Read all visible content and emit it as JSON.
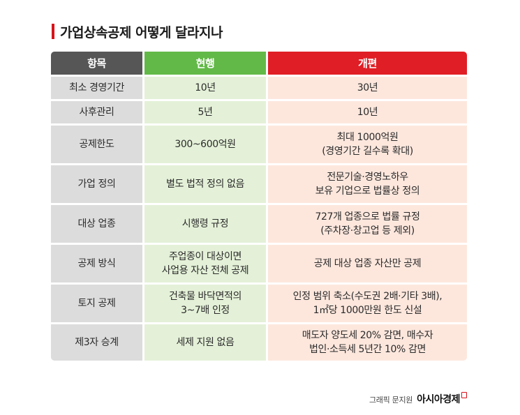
{
  "title": "가업상속공제 어떻게 달라지나",
  "colors": {
    "accent": "#d7121a",
    "header_item": "#565656",
    "header_current": "#62b947",
    "header_reform": "#e01e25",
    "col_item_bg": "#dcdcdc",
    "col_current_bg": "#e4f1d8",
    "col_reform_bg": "#fde7dd"
  },
  "table": {
    "headers": [
      "항목",
      "현행",
      "개편"
    ],
    "rows": [
      {
        "item": [
          "최소 경영기간"
        ],
        "current": [
          "10년"
        ],
        "reform": [
          "30년"
        ]
      },
      {
        "item": [
          "사후관리"
        ],
        "current": [
          "5년"
        ],
        "reform": [
          "10년"
        ]
      },
      {
        "item": [
          "공제한도"
        ],
        "current": [
          "300~600억원"
        ],
        "reform": [
          "최대 1000억원",
          "(경영기간 길수록 확대)"
        ]
      },
      {
        "item": [
          "가업 정의"
        ],
        "current": [
          "별도 법적 정의 없음"
        ],
        "reform": [
          "전문기술·경영노하우",
          "보유 기업으로 법률상 정의"
        ]
      },
      {
        "item": [
          "대상 업종"
        ],
        "current": [
          "시행령 규정"
        ],
        "reform": [
          "727개 업종으로 법률 규정",
          "(주차장·창고업 등 제외)"
        ]
      },
      {
        "item": [
          "공제 방식"
        ],
        "current": [
          "주업종이 대상이면",
          "사업용 자산 전체 공제"
        ],
        "reform": [
          "공제 대상 업종 자산만 공제"
        ]
      },
      {
        "item": [
          "토지 공제"
        ],
        "current": [
          "건축물 바닥면적의",
          "3~7배 인정"
        ],
        "reform": [
          "인정 범위 축소(수도권 2배·기타 3배),",
          "1㎡당 1000만원 한도 신설"
        ]
      },
      {
        "item": [
          "제3자 승계"
        ],
        "current": [
          "세제 지원 없음"
        ],
        "reform": [
          "매도자 양도세 20% 감면, 매수자",
          "법인·소득세 5년간 10% 감면"
        ]
      }
    ]
  },
  "credit": {
    "label": "그래픽 문지원",
    "brand": "아시아경제"
  }
}
